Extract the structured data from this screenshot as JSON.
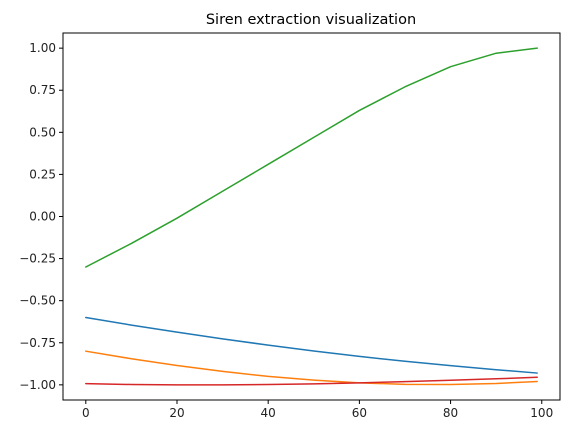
{
  "chart_data": {
    "type": "line",
    "title": "Siren extraction visualization",
    "xlabel": "",
    "ylabel": "",
    "xlim": [
      -5,
      104
    ],
    "ylim": [
      -1.09,
      1.09
    ],
    "x_ticks": [
      0,
      20,
      40,
      60,
      80,
      100
    ],
    "y_ticks": [
      -1.0,
      -0.75,
      -0.5,
      -0.25,
      0.0,
      0.25,
      0.5,
      0.75,
      1.0
    ],
    "x_tick_labels": [
      "0",
      "20",
      "40",
      "60",
      "80",
      "100"
    ],
    "y_tick_labels": [
      "−1.00",
      "−0.75",
      "−0.50",
      "−0.25",
      "0.00",
      "0.25",
      "0.50",
      "0.75",
      "1.00"
    ],
    "grid": false,
    "legend": "none",
    "x": [
      0,
      10,
      20,
      30,
      40,
      50,
      60,
      70,
      80,
      90,
      99
    ],
    "series": [
      {
        "color": "#1f77b4",
        "values": [
          -0.6,
          -0.645,
          -0.687,
          -0.727,
          -0.764,
          -0.799,
          -0.831,
          -0.86,
          -0.886,
          -0.91,
          -0.93
        ]
      },
      {
        "color": "#ff7f0e",
        "values": [
          -0.8,
          -0.845,
          -0.885,
          -0.92,
          -0.95,
          -0.972,
          -0.988,
          -0.997,
          -0.998,
          -0.992,
          -0.98
        ]
      },
      {
        "color": "#2ca02c",
        "values": [
          -0.3,
          -0.16,
          -0.01,
          0.15,
          0.31,
          0.47,
          0.63,
          0.77,
          0.89,
          0.97,
          1.0
        ]
      },
      {
        "color": "#d62728",
        "values": [
          -0.993,
          -0.998,
          -1.0,
          -1.0,
          -0.998,
          -0.994,
          -0.988,
          -0.981,
          -0.973,
          -0.964,
          -0.955
        ]
      }
    ]
  }
}
